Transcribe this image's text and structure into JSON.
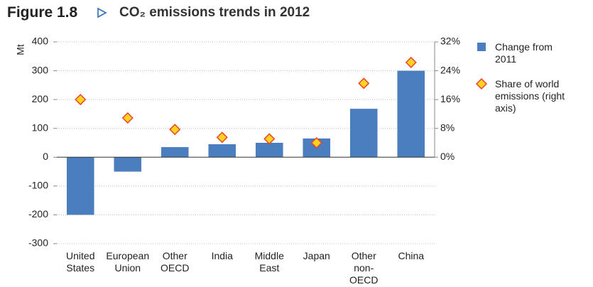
{
  "figure_label": "Figure 1.8",
  "chart_data": {
    "type": "bar",
    "title": "CO₂ emissions trends in 2012",
    "y_label": "Mt",
    "categories": [
      "United States",
      "European Union",
      "Other OECD",
      "India",
      "Middle East",
      "Japan",
      "Other non-OECD",
      "China"
    ],
    "series": [
      {
        "name": "Change from 2011",
        "type": "bar",
        "color": "#4a7ebf",
        "values": [
          -200,
          -50,
          35,
          45,
          50,
          65,
          168,
          300
        ]
      },
      {
        "name": "Share of world emissions (right axis)",
        "type": "scatter",
        "axis": "y2",
        "color": "#ffd320",
        "edge_color": "#e8452c",
        "values": [
          16.0,
          10.9,
          7.7,
          5.5,
          5.1,
          4.0,
          20.5,
          26.3
        ]
      }
    ],
    "ylim": [
      -300,
      400
    ],
    "yticks": [
      -300,
      -200,
      -100,
      0,
      100,
      200,
      300,
      400
    ],
    "y2lim": [
      -24,
      32
    ],
    "y2ticks": [
      {
        "value": 0,
        "label": "0%"
      },
      {
        "value": 8,
        "label": "8%"
      },
      {
        "value": 16,
        "label": "16%"
      },
      {
        "value": 24,
        "label": "24%"
      },
      {
        "value": 32,
        "label": "32%"
      }
    ],
    "grid": true,
    "legend": "right"
  }
}
